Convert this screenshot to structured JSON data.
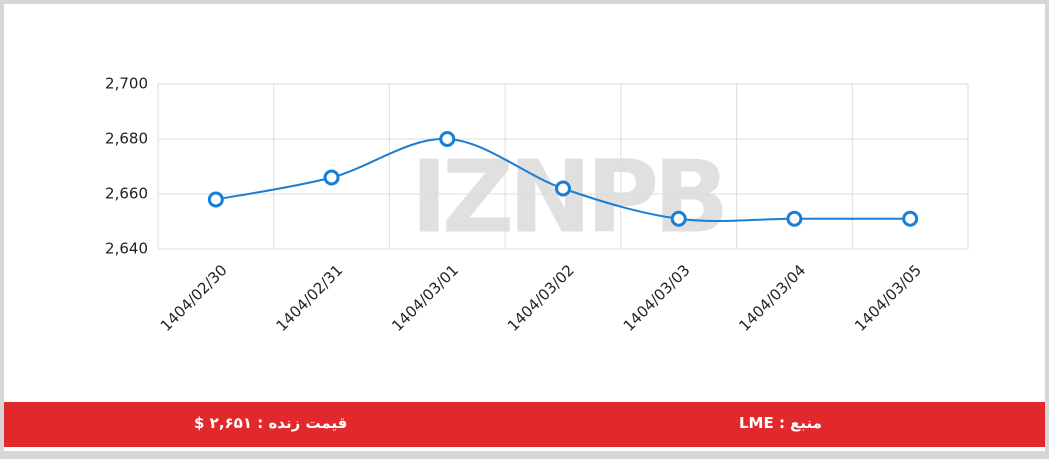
{
  "chart_data": {
    "type": "line",
    "categories": [
      "1404/02/30",
      "1404/02/31",
      "1404/03/01",
      "1404/03/02",
      "1404/03/03",
      "1404/03/04",
      "1404/03/05"
    ],
    "series": [
      {
        "color": "#1a7fd4",
        "values": [
          2658,
          2666,
          2680,
          2662,
          2651,
          2651,
          2651
        ]
      }
    ],
    "ylim": [
      2640,
      2700
    ],
    "yticks": [
      {
        "value": 2640,
        "label": "2,640"
      },
      {
        "value": 2660,
        "label": "2,660"
      },
      {
        "value": 2680,
        "label": "2,680"
      },
      {
        "value": 2700,
        "label": "2,700"
      }
    ],
    "grid": true,
    "watermark": "IZNPB"
  },
  "footer": {
    "live_price": "قیمت زنده : ۲,۶۵۱ $",
    "source": "منبع : LME"
  }
}
